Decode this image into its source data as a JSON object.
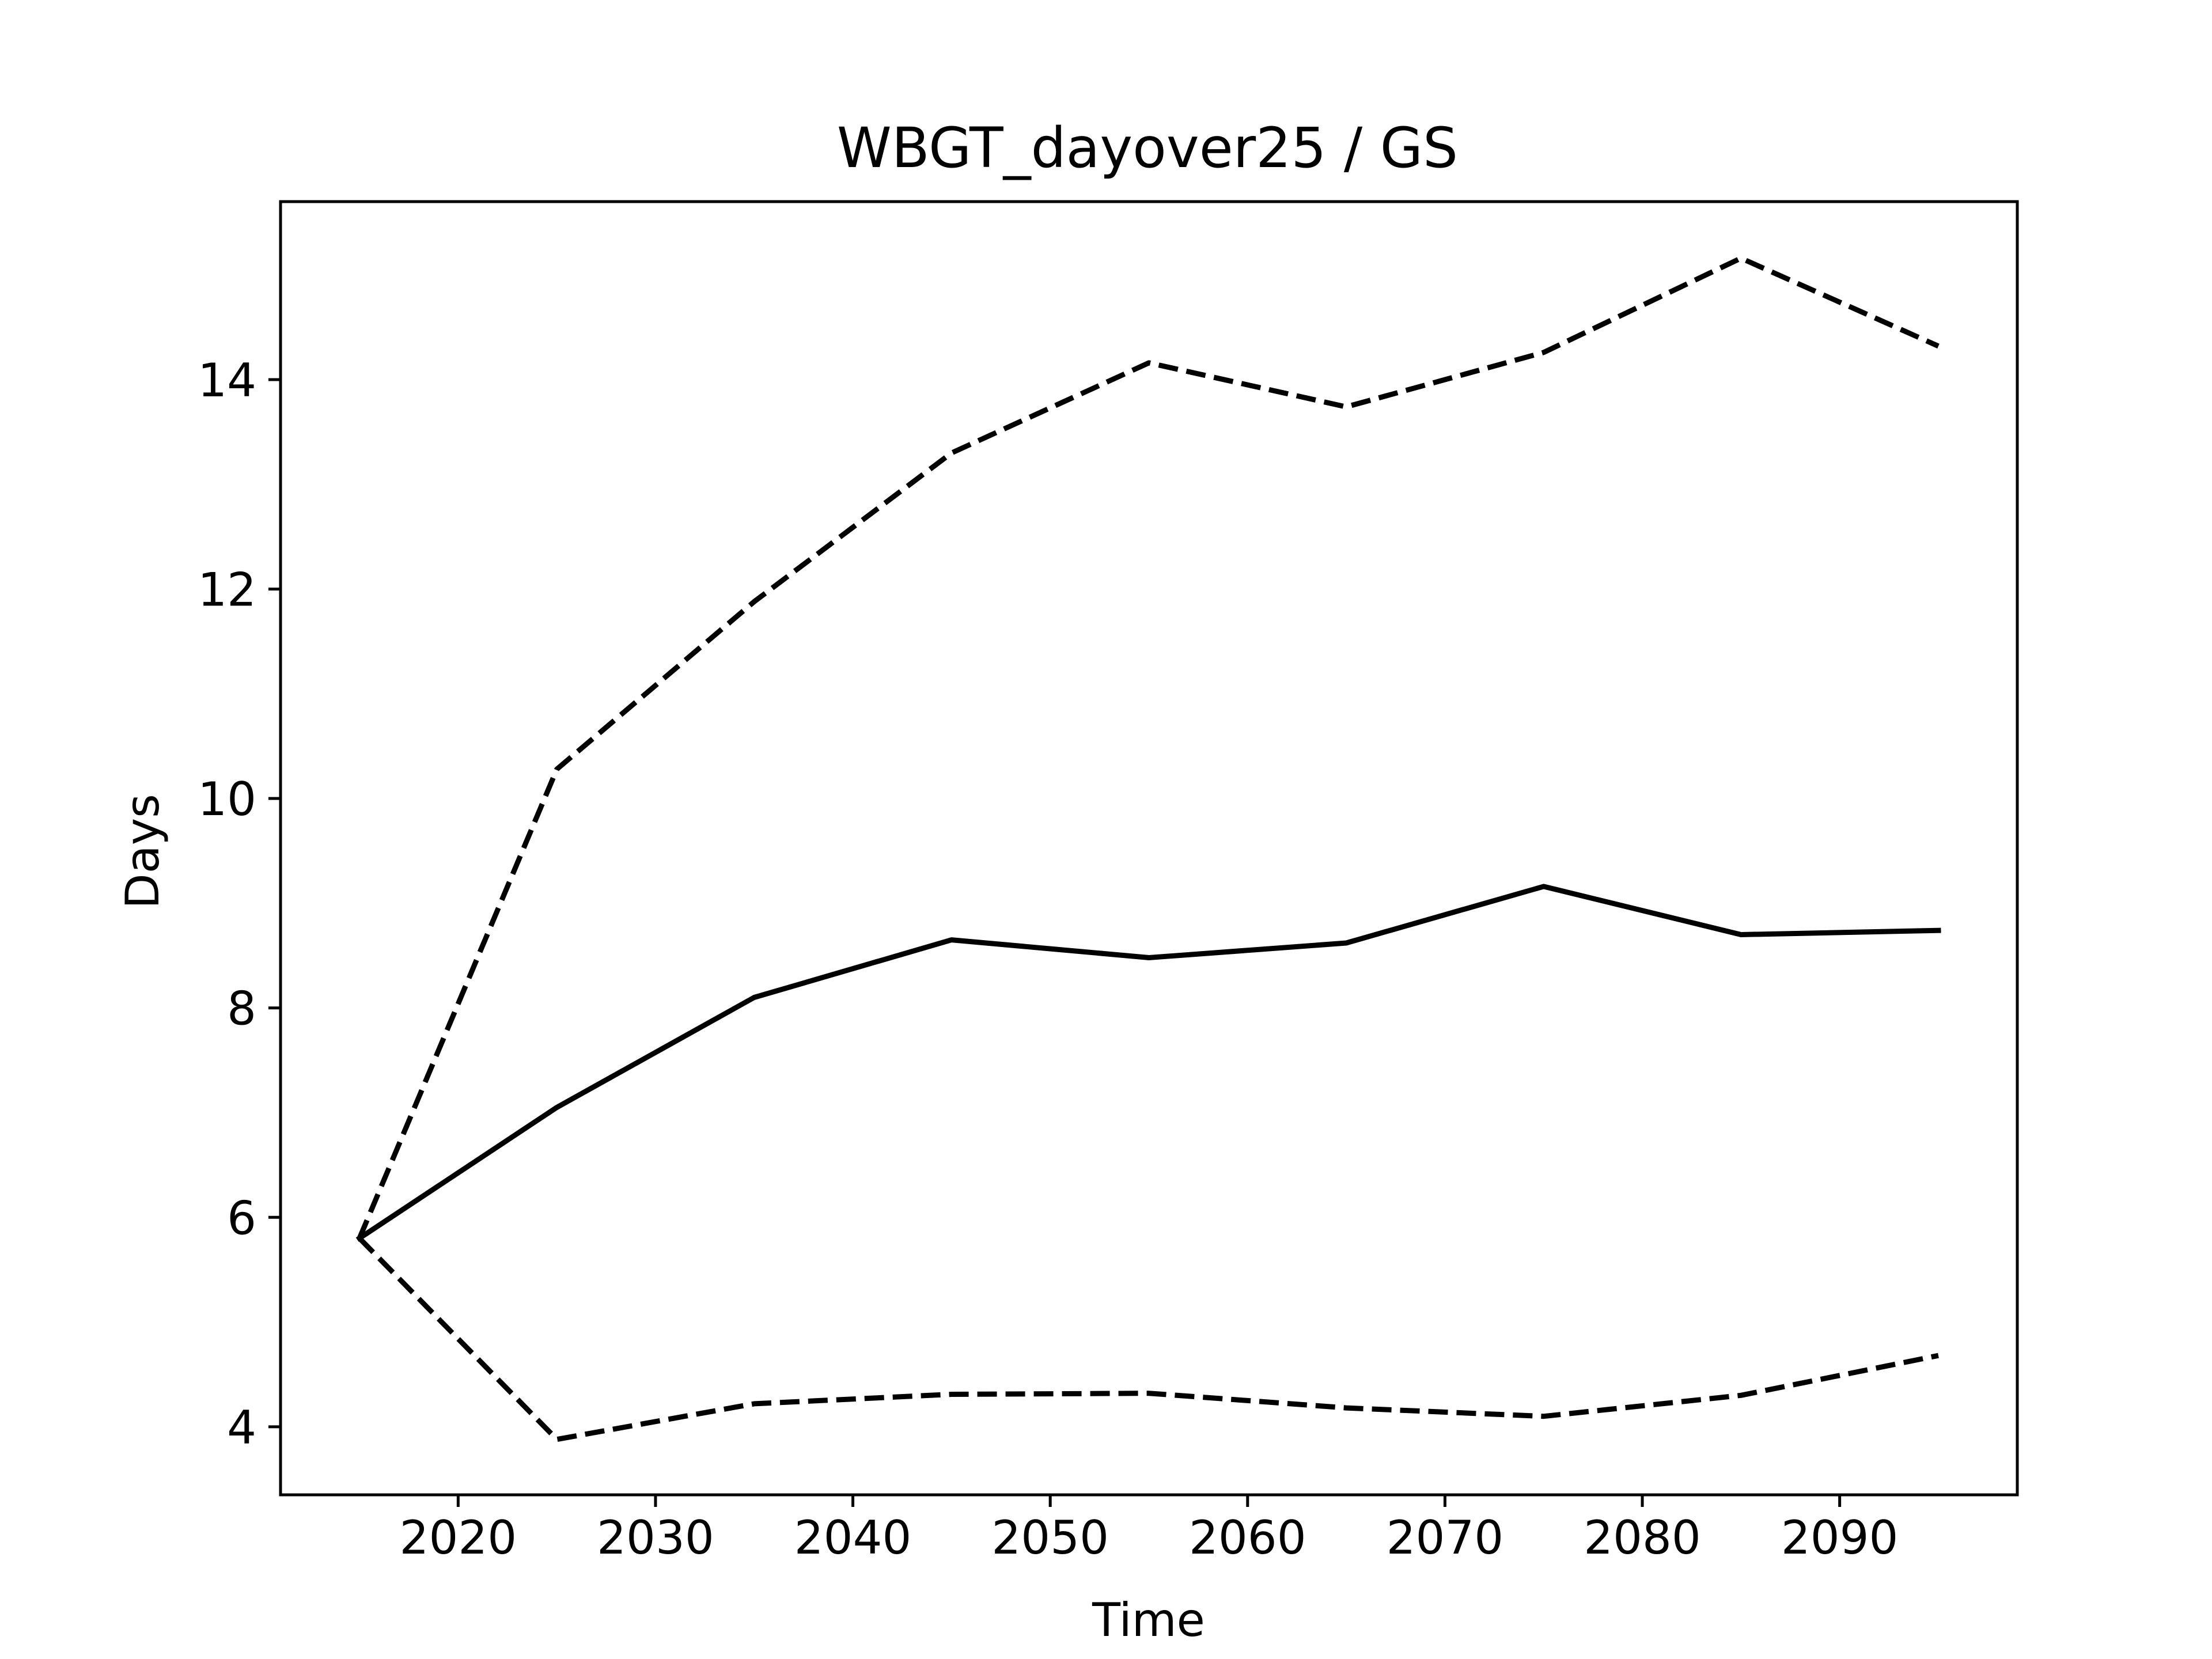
{
  "chart_data": {
    "type": "line",
    "title": "WBGT_dayover25 / GS",
    "xlabel": "Time",
    "ylabel": "Days",
    "x": [
      2015,
      2025,
      2035,
      2045,
      2055,
      2065,
      2075,
      2085,
      2095
    ],
    "xlim": [
      2011,
      2099
    ],
    "ylim": [
      3.35,
      15.7
    ],
    "xticks": [
      2020,
      2030,
      2040,
      2050,
      2060,
      2070,
      2080,
      2090
    ],
    "yticks": [
      4,
      6,
      8,
      10,
      12,
      14
    ],
    "grid": false,
    "legend": "none",
    "series": [
      {
        "style": "solid",
        "color": "#000000",
        "values": [
          5.8,
          7.05,
          8.1,
          8.65,
          8.48,
          8.62,
          9.16,
          8.7,
          8.74
        ]
      },
      {
        "style": "dashed",
        "color": "#000000",
        "values": [
          5.8,
          10.28,
          11.88,
          13.3,
          14.16,
          13.74,
          14.26,
          15.16,
          14.32
        ]
      },
      {
        "style": "dashed",
        "color": "#000000",
        "values": [
          5.8,
          3.88,
          4.22,
          4.31,
          4.32,
          4.18,
          4.1,
          4.3,
          4.68
        ]
      }
    ]
  }
}
